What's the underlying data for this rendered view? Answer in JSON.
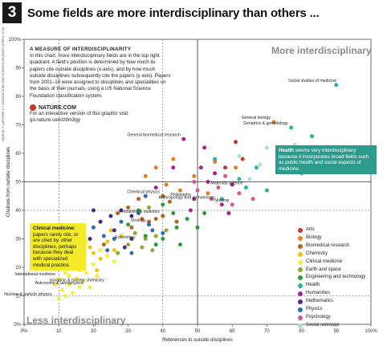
{
  "header": {
    "number": "3",
    "title": "Some fields are more interdisciplinary than others ..."
  },
  "measure_box": {
    "heading": "A MEASURE OF INTERDISCIPLINARITY",
    "body": "In this chart, more interdisciplinary fields are in the top right quadrant. A field's position is determined by how much its papers cite outside disciplines (x-axis), and by how much outside disciplines subsequently cite the papers (y axis). Papers from 2001–10 were assigned to disciplines and specialities on the basis of their journals, using a US National Science Foundation classification system.",
    "logo_text": "NATURE.COM",
    "link_text": "For an interactive version of this graphic visit: go.nature.com/z9m3gy"
  },
  "corner_labels": {
    "top_right": "More interdisciplinary",
    "bottom_left": "Less interdisciplinary"
  },
  "health_box": {
    "lead": "Health",
    "text": " seems very interdisciplinary because it incorporates broad fields such as public health and social aspects of medicine."
  },
  "clinical_box": {
    "lead": "Clinical medicine:",
    "text": " papers rarely cite, or are cited by, other disciplines, perhaps because they deal with specialized medical practice"
  },
  "chart_data": {
    "type": "scatter",
    "xlabel": "References to outside disciplines",
    "ylabel": "Citations from outside disciplines",
    "xlim": [
      0,
      100
    ],
    "ylim": [
      0,
      100
    ],
    "xticks": [
      "0%",
      "10",
      "20",
      "30",
      "40",
      "50",
      "60",
      "70",
      "80",
      "90",
      "100%"
    ],
    "yticks": [
      "0%",
      "10",
      "20",
      "30",
      "40",
      "50",
      "60",
      "70",
      "80",
      "90",
      "100%"
    ],
    "source_label": "SOURCE: V. LARIVIÈRE & Y. GINGRAS IN BEYOND INTERDISCIPLINARITY (PRESS, 2014)",
    "grid": "dashed at 10 and 40, solid at 50",
    "legend_position": "bottom-right",
    "series": [
      {
        "name": "Arts",
        "color": "#c0392b",
        "points": [
          [
            61,
            64
          ],
          [
            63,
            58
          ],
          [
            58,
            55
          ]
        ]
      },
      {
        "name": "Biology",
        "color": "#e67e22",
        "points": [
          [
            72,
            71
          ],
          [
            49,
            52
          ],
          [
            45,
            47
          ],
          [
            53,
            46
          ],
          [
            61,
            55
          ],
          [
            43,
            58
          ],
          [
            35,
            52
          ],
          [
            38,
            55
          ],
          [
            41,
            49
          ],
          [
            55,
            57
          ]
        ]
      },
      {
        "name": "Biomedical research",
        "color": "#b5651d",
        "points": [
          [
            40,
            45
          ],
          [
            27,
            39
          ],
          [
            30,
            41
          ],
          [
            33,
            44
          ],
          [
            36,
            36
          ],
          [
            38,
            37
          ],
          [
            44,
            36
          ],
          [
            31,
            34
          ],
          [
            34,
            37
          ],
          [
            23,
            28
          ],
          [
            42,
            43
          ],
          [
            40,
            38
          ]
        ]
      },
      {
        "name": "Chemistry",
        "color": "#f1c40f",
        "points": [
          [
            17,
            22
          ],
          [
            20,
            25
          ],
          [
            22,
            23
          ],
          [
            26,
            26
          ],
          [
            28,
            31
          ],
          [
            24,
            29
          ],
          [
            21,
            19
          ],
          [
            15,
            20
          ],
          [
            25,
            33
          ],
          [
            19,
            27
          ]
        ]
      },
      {
        "name": "Clinical medicine",
        "color": "#f7ec42",
        "points": [
          [
            10,
            16
          ],
          [
            12,
            18
          ],
          [
            13,
            14
          ],
          [
            15,
            16
          ],
          [
            16,
            13
          ],
          [
            14,
            11
          ],
          [
            11,
            12
          ],
          [
            17,
            15
          ],
          [
            12,
            10
          ],
          [
            9,
            14
          ],
          [
            18,
            18
          ],
          [
            20,
            21
          ],
          [
            22,
            26
          ],
          [
            24,
            24
          ],
          [
            16,
            19
          ],
          [
            13,
            17
          ],
          [
            19,
            13
          ],
          [
            15,
            22
          ],
          [
            21,
            17
          ],
          [
            14,
            20
          ],
          [
            17,
            24
          ],
          [
            10,
            9
          ],
          [
            12,
            22
          ],
          [
            18,
            29
          ],
          [
            26,
            22
          ]
        ]
      },
      {
        "name": "Earth and space",
        "color": "#8fa83a",
        "points": [
          [
            32,
            32
          ],
          [
            35,
            30
          ],
          [
            38,
            31
          ],
          [
            37,
            26
          ],
          [
            41,
            33
          ],
          [
            30,
            28
          ],
          [
            27,
            25
          ],
          [
            36,
            41
          ],
          [
            34,
            27
          ]
        ]
      },
      {
        "name": "Engineering and technology",
        "color": "#2e9a3d",
        "points": [
          [
            40,
            30
          ],
          [
            44,
            34
          ],
          [
            47,
            37
          ],
          [
            52,
            39
          ],
          [
            45,
            28
          ],
          [
            38,
            28
          ],
          [
            43,
            39
          ],
          [
            35,
            31
          ],
          [
            40,
            42
          ],
          [
            50,
            34
          ],
          [
            30,
            35
          ],
          [
            33,
            40
          ]
        ]
      },
      {
        "name": "Health",
        "color": "#2bb3a0",
        "points": [
          [
            77,
            69
          ],
          [
            83,
            66
          ],
          [
            75,
            62
          ],
          [
            78,
            57
          ],
          [
            80,
            53
          ],
          [
            73,
            56
          ],
          [
            67,
            55
          ],
          [
            62,
            51
          ],
          [
            57,
            44
          ],
          [
            70,
            47
          ],
          [
            55,
            58
          ],
          [
            64,
            48
          ],
          [
            90,
            84
          ]
        ]
      },
      {
        "name": "Humanities",
        "color": "#a3258c",
        "points": [
          [
            46,
            65
          ],
          [
            55,
            53
          ],
          [
            60,
            49
          ],
          [
            57,
            42
          ],
          [
            49,
            44
          ],
          [
            51,
            55
          ],
          [
            38,
            48
          ],
          [
            48,
            40
          ],
          [
            53,
            50
          ],
          [
            43,
            55
          ],
          [
            59,
            39
          ],
          [
            52,
            62
          ]
        ]
      },
      {
        "name": "Mathematics",
        "color": "#4b2a82",
        "points": [
          [
            22,
            36
          ],
          [
            25,
            38
          ],
          [
            28,
            40
          ],
          [
            31,
            30
          ],
          [
            26,
            33
          ],
          [
            20,
            40
          ],
          [
            29,
            27
          ],
          [
            19,
            30
          ],
          [
            31,
            38
          ]
        ]
      },
      {
        "name": "Physics",
        "color": "#2f6db5",
        "points": [
          [
            20,
            34
          ],
          [
            24,
            26
          ],
          [
            28,
            36
          ],
          [
            33,
            39
          ],
          [
            36,
            35
          ],
          [
            40,
            32
          ],
          [
            31,
            25
          ],
          [
            23,
            31
          ],
          [
            35,
            45
          ],
          [
            26,
            30
          ],
          [
            37,
            33
          ]
        ]
      },
      {
        "name": "Psychology",
        "color": "#d85a8f",
        "points": [
          [
            50,
            47
          ],
          [
            54,
            44
          ],
          [
            58,
            52
          ],
          [
            62,
            46
          ],
          [
            66,
            44
          ],
          [
            60,
            42
          ],
          [
            49,
            50
          ],
          [
            56,
            48
          ]
        ]
      },
      {
        "name": "Social sciences",
        "color": "#a9dfd5",
        "points": [
          [
            68,
            56
          ],
          [
            73,
            59
          ],
          [
            78,
            63
          ],
          [
            80,
            54
          ],
          [
            75,
            54
          ],
          [
            65,
            51
          ],
          [
            62,
            59
          ],
          [
            84,
            60
          ],
          [
            70,
            62
          ]
        ]
      }
    ],
    "annotations": [
      {
        "text": "Social studies of medicine",
        "x": 91,
        "y": 84
      },
      {
        "text": "General biology",
        "x": 72,
        "y": 71
      },
      {
        "text": "Geriatrics & gerontology",
        "x": 77,
        "y": 69
      },
      {
        "text": "General biomedical research",
        "x": 46,
        "y": 65
      },
      {
        "text": "Chemical physics",
        "x": 40,
        "y": 45
      },
      {
        "text": "Philosophy",
        "x": 49,
        "y": 44
      },
      {
        "text": "Probability & statistics",
        "x": 40,
        "y": 38
      },
      {
        "text": "Materials science",
        "x": 64,
        "y": 48
      },
      {
        "text": "Anthropology and archaeology",
        "x": 56,
        "y": 43
      },
      {
        "text": "Virology",
        "x": 36,
        "y": 35
      },
      {
        "text": "Economics",
        "x": 33,
        "y": 29
      },
      {
        "text": "Nursing",
        "x": 60,
        "y": 42
      },
      {
        "text": "International medicine",
        "x": 10,
        "y": 16
      },
      {
        "text": "Inorganic & nuclear chemistry",
        "x": 24,
        "y": 14
      },
      {
        "text": "Astronomy & astrophysics",
        "x": 18,
        "y": 13
      },
      {
        "text": "Nuclear & particle physics",
        "x": 9,
        "y": 9
      }
    ]
  }
}
